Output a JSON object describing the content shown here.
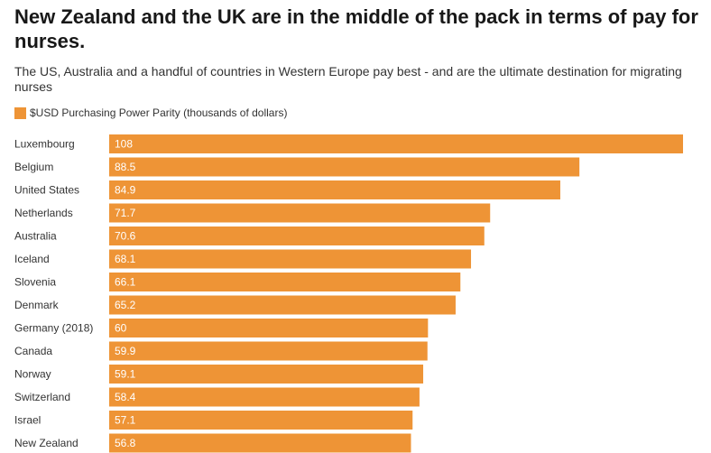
{
  "chart_data": {
    "type": "bar",
    "orientation": "horizontal",
    "title": "New Zealand and the UK are in the middle of the pack in terms of pay for nurses.",
    "subtitle": "The US, Australia and a handful of countries in Western Europe pay best - and are the ultimate destination for migrating nurses",
    "legend": [
      {
        "name": "$USD Purchasing Power Parity (thousands of dollars)",
        "color": "#ee9436"
      }
    ],
    "legend_position": "top-left",
    "categories": [
      "Luxembourg",
      "Belgium",
      "United States",
      "Netherlands",
      "Australia",
      "Iceland",
      "Slovenia",
      "Denmark",
      "Germany (2018)",
      "Canada",
      "Norway",
      "Switzerland",
      "Israel",
      "New Zealand"
    ],
    "values": [
      108,
      88.5,
      84.9,
      71.7,
      70.6,
      68.1,
      66.1,
      65.2,
      60,
      59.9,
      59.1,
      58.4,
      57.1,
      56.8
    ],
    "value_labels": [
      "108",
      "88.5",
      "84.9",
      "71.7",
      "70.6",
      "68.1",
      "66.1",
      "65.2",
      "60",
      "59.9",
      "59.1",
      "58.4",
      "57.1",
      "56.8"
    ],
    "xlim": [
      0,
      108
    ],
    "grid": false,
    "bar_color": "#ee9436"
  }
}
